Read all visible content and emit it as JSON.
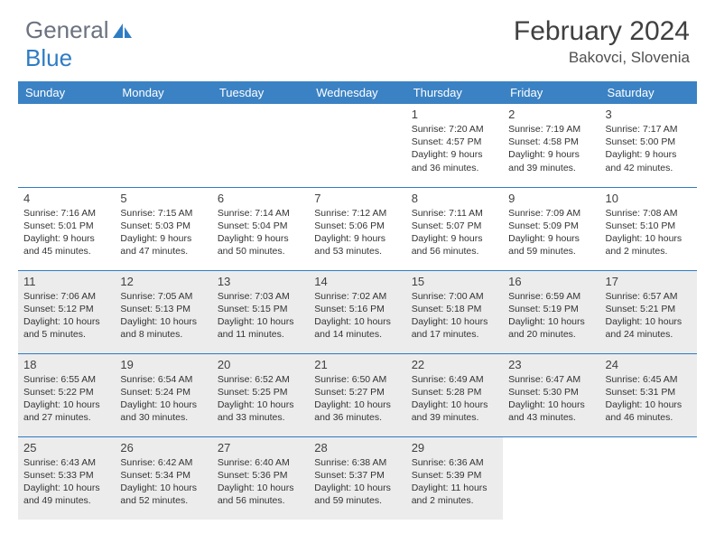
{
  "logo": {
    "text_gray": "General",
    "text_blue": "Blue"
  },
  "title": "February 2024",
  "location": "Bakovci, Slovenia",
  "colors": {
    "header_bg": "#3b82c4",
    "border": "#2e7cc4",
    "shade": "#ececec",
    "text": "#333333"
  },
  "day_headers": [
    "Sunday",
    "Monday",
    "Tuesday",
    "Wednesday",
    "Thursday",
    "Friday",
    "Saturday"
  ],
  "weeks": [
    [
      null,
      null,
      null,
      null,
      {
        "n": "1",
        "sr": "7:20 AM",
        "ss": "4:57 PM",
        "dl": "9 hours and 36 minutes."
      },
      {
        "n": "2",
        "sr": "7:19 AM",
        "ss": "4:58 PM",
        "dl": "9 hours and 39 minutes."
      },
      {
        "n": "3",
        "sr": "7:17 AM",
        "ss": "5:00 PM",
        "dl": "9 hours and 42 minutes."
      }
    ],
    [
      {
        "n": "4",
        "sr": "7:16 AM",
        "ss": "5:01 PM",
        "dl": "9 hours and 45 minutes."
      },
      {
        "n": "5",
        "sr": "7:15 AM",
        "ss": "5:03 PM",
        "dl": "9 hours and 47 minutes."
      },
      {
        "n": "6",
        "sr": "7:14 AM",
        "ss": "5:04 PM",
        "dl": "9 hours and 50 minutes."
      },
      {
        "n": "7",
        "sr": "7:12 AM",
        "ss": "5:06 PM",
        "dl": "9 hours and 53 minutes."
      },
      {
        "n": "8",
        "sr": "7:11 AM",
        "ss": "5:07 PM",
        "dl": "9 hours and 56 minutes."
      },
      {
        "n": "9",
        "sr": "7:09 AM",
        "ss": "5:09 PM",
        "dl": "9 hours and 59 minutes."
      },
      {
        "n": "10",
        "sr": "7:08 AM",
        "ss": "5:10 PM",
        "dl": "10 hours and 2 minutes."
      }
    ],
    [
      {
        "n": "11",
        "sr": "7:06 AM",
        "ss": "5:12 PM",
        "dl": "10 hours and 5 minutes."
      },
      {
        "n": "12",
        "sr": "7:05 AM",
        "ss": "5:13 PM",
        "dl": "10 hours and 8 minutes."
      },
      {
        "n": "13",
        "sr": "7:03 AM",
        "ss": "5:15 PM",
        "dl": "10 hours and 11 minutes."
      },
      {
        "n": "14",
        "sr": "7:02 AM",
        "ss": "5:16 PM",
        "dl": "10 hours and 14 minutes."
      },
      {
        "n": "15",
        "sr": "7:00 AM",
        "ss": "5:18 PM",
        "dl": "10 hours and 17 minutes."
      },
      {
        "n": "16",
        "sr": "6:59 AM",
        "ss": "5:19 PM",
        "dl": "10 hours and 20 minutes."
      },
      {
        "n": "17",
        "sr": "6:57 AM",
        "ss": "5:21 PM",
        "dl": "10 hours and 24 minutes."
      }
    ],
    [
      {
        "n": "18",
        "sr": "6:55 AM",
        "ss": "5:22 PM",
        "dl": "10 hours and 27 minutes."
      },
      {
        "n": "19",
        "sr": "6:54 AM",
        "ss": "5:24 PM",
        "dl": "10 hours and 30 minutes."
      },
      {
        "n": "20",
        "sr": "6:52 AM",
        "ss": "5:25 PM",
        "dl": "10 hours and 33 minutes."
      },
      {
        "n": "21",
        "sr": "6:50 AM",
        "ss": "5:27 PM",
        "dl": "10 hours and 36 minutes."
      },
      {
        "n": "22",
        "sr": "6:49 AM",
        "ss": "5:28 PM",
        "dl": "10 hours and 39 minutes."
      },
      {
        "n": "23",
        "sr": "6:47 AM",
        "ss": "5:30 PM",
        "dl": "10 hours and 43 minutes."
      },
      {
        "n": "24",
        "sr": "6:45 AM",
        "ss": "5:31 PM",
        "dl": "10 hours and 46 minutes."
      }
    ],
    [
      {
        "n": "25",
        "sr": "6:43 AM",
        "ss": "5:33 PM",
        "dl": "10 hours and 49 minutes."
      },
      {
        "n": "26",
        "sr": "6:42 AM",
        "ss": "5:34 PM",
        "dl": "10 hours and 52 minutes."
      },
      {
        "n": "27",
        "sr": "6:40 AM",
        "ss": "5:36 PM",
        "dl": "10 hours and 56 minutes."
      },
      {
        "n": "28",
        "sr": "6:38 AM",
        "ss": "5:37 PM",
        "dl": "10 hours and 59 minutes."
      },
      {
        "n": "29",
        "sr": "6:36 AM",
        "ss": "5:39 PM",
        "dl": "11 hours and 2 minutes."
      },
      null,
      null
    ]
  ],
  "labels": {
    "sunrise": "Sunrise: ",
    "sunset": "Sunset: ",
    "daylight": "Daylight: "
  }
}
